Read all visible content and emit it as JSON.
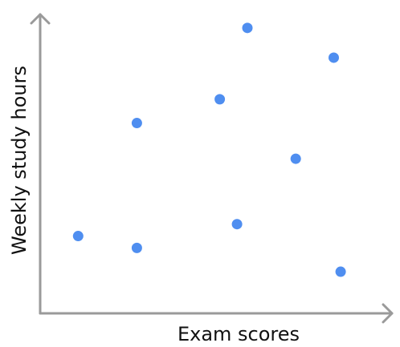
{
  "chart_data": {
    "type": "scatter",
    "x_label": "Exam scores",
    "y_label": "Weekly study hours",
    "xlim": [
      0,
      100
    ],
    "ylim": [
      0,
      100
    ],
    "color": "#4f8ef0",
    "series": [
      {
        "x": [
          11,
          28,
          28,
          52,
          57,
          60,
          74,
          85,
          87
        ],
        "values": [
          26,
          64,
          22,
          72,
          30,
          96,
          52,
          86,
          14
        ]
      }
    ]
  }
}
